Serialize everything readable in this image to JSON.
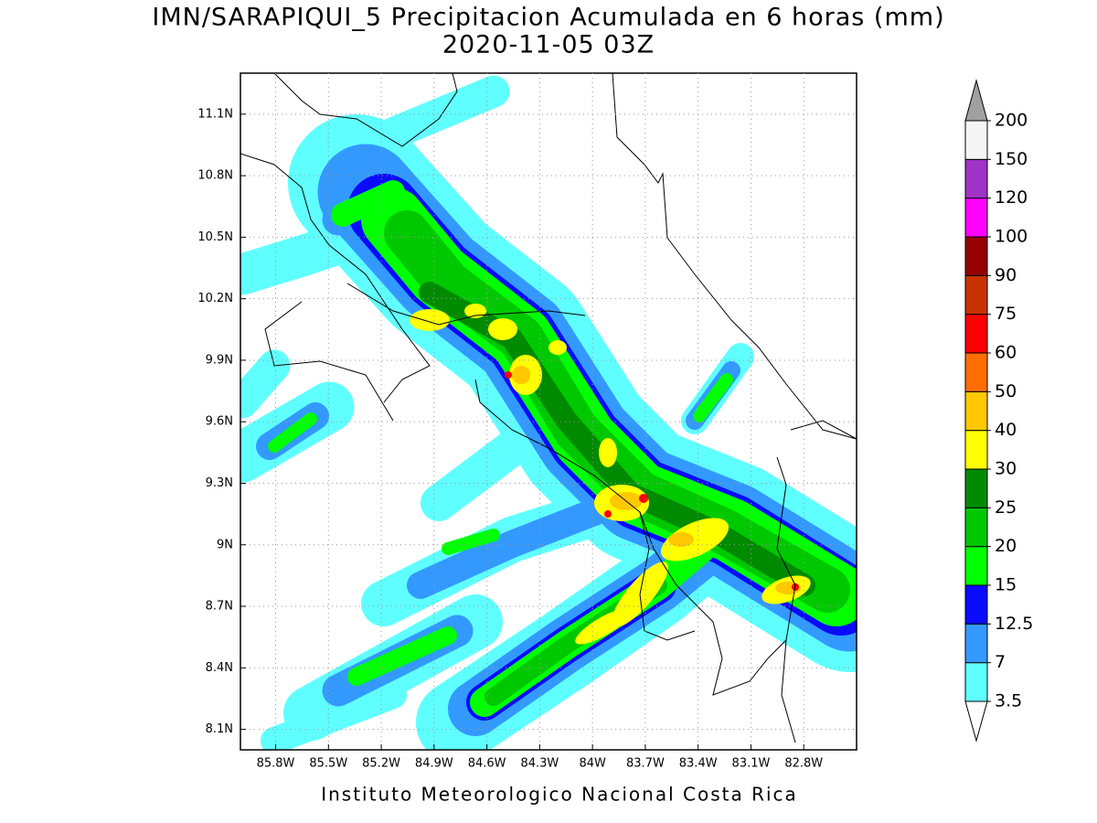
{
  "title": "IMN/SARAPIQUI_5 Precipitacion Acumulada en 6 horas (mm)",
  "subtitle": "2020-11-05 03Z",
  "footer": "Instituto Meteorologico Nacional Costa Rica",
  "map": {
    "xlim": [
      -86.0,
      -82.5
    ],
    "ylim": [
      8.0,
      11.3
    ],
    "xticks": [
      {
        "value": -85.8,
        "label": "85.8W"
      },
      {
        "value": -85.5,
        "label": "85.5W"
      },
      {
        "value": -85.2,
        "label": "85.2W"
      },
      {
        "value": -84.9,
        "label": "84.9W"
      },
      {
        "value": -84.6,
        "label": "84.6W"
      },
      {
        "value": -84.3,
        "label": "84.3W"
      },
      {
        "value": -84,
        "label": "84W"
      },
      {
        "value": -83.7,
        "label": "83.7W"
      },
      {
        "value": -83.4,
        "label": "83.4W"
      },
      {
        "value": -83.1,
        "label": "83.1W"
      },
      {
        "value": -82.8,
        "label": "82.8W"
      }
    ],
    "yticks": [
      {
        "value": 8.1,
        "label": "8.1N"
      },
      {
        "value": 8.4,
        "label": "8.4N"
      },
      {
        "value": 8.7,
        "label": "8.7N"
      },
      {
        "value": 9,
        "label": "9N"
      },
      {
        "value": 9.3,
        "label": "9.3N"
      },
      {
        "value": 9.6,
        "label": "9.6N"
      },
      {
        "value": 9.9,
        "label": "9.9N"
      },
      {
        "value": 10.2,
        "label": "10.2N"
      },
      {
        "value": 10.5,
        "label": "10.5N"
      },
      {
        "value": 10.8,
        "label": "10.8N"
      },
      {
        "value": 11.1,
        "label": "11.1N"
      }
    ]
  },
  "colorbar": {
    "levels": [
      3.5,
      7,
      12.5,
      15,
      20,
      25,
      30,
      40,
      50,
      60,
      75,
      90,
      100,
      120,
      150,
      200
    ],
    "colors": [
      "#ffffff",
      "#60ffff",
      "#3399ff",
      "#0a0aff",
      "#00ff00",
      "#00c800",
      "#008a00",
      "#ffff00",
      "#ffc800",
      "#ff6e00",
      "#ff0000",
      "#c83200",
      "#960000",
      "#ff00ff",
      "#a032c8",
      "#f5f5f5",
      "#a0a0a0"
    ]
  }
}
